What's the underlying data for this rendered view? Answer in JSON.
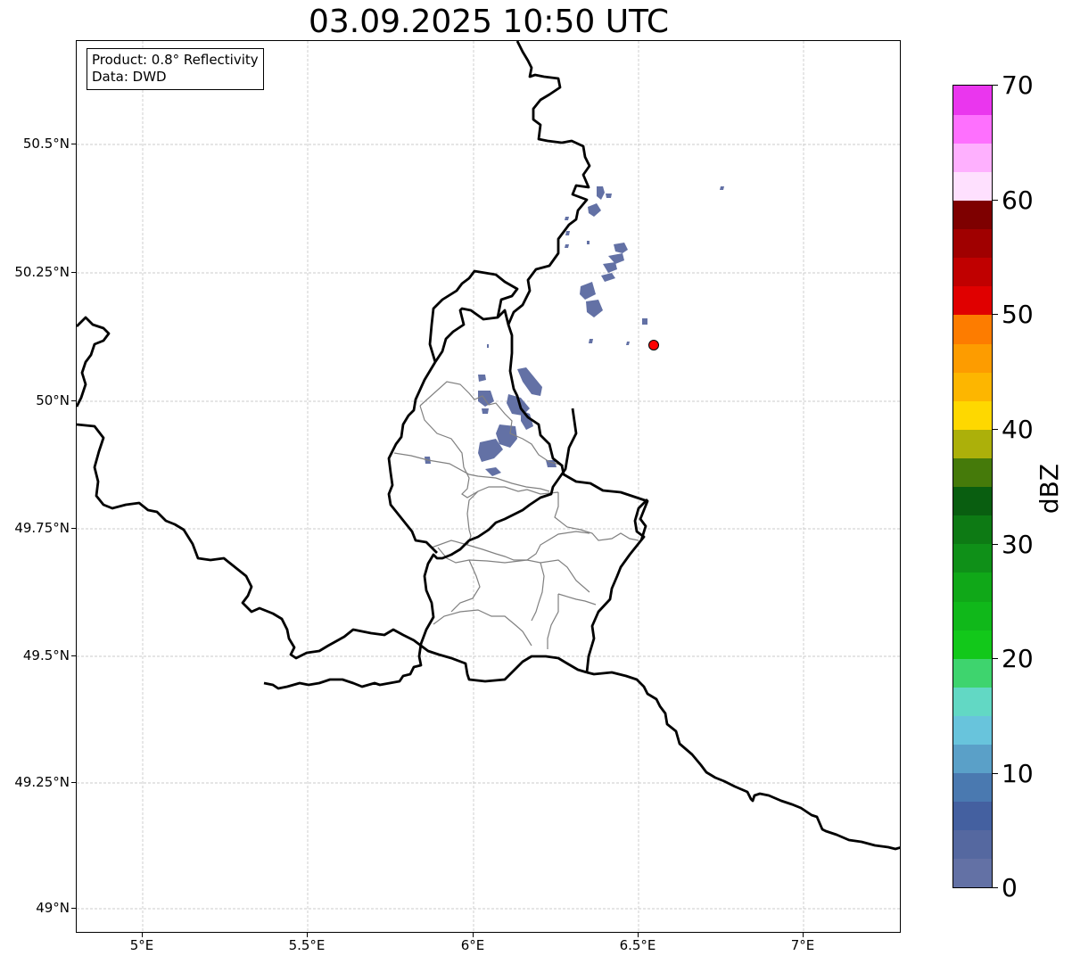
{
  "title": "03.09.2025 10:50 UTC",
  "info": {
    "product": "Product: 0.8° Reflectivity",
    "source": "Data: DWD"
  },
  "axes": {
    "lat_ticks": [
      "50.5°N",
      "50.25°N",
      "50°N",
      "49.75°N",
      "49.5°N",
      "49.25°N",
      "49°N"
    ],
    "lon_ticks": [
      "5°E",
      "5.5°E",
      "6°E",
      "6.5°E",
      "7°E"
    ],
    "grid": true
  },
  "colorbar": {
    "unit": "dBZ",
    "min": 0,
    "max": 70,
    "tick_labels": [
      "0",
      "10",
      "20",
      "30",
      "40",
      "50",
      "60",
      "70"
    ],
    "colors": [
      "#6371a5",
      "#5568a0",
      "#4460a0",
      "#4a79b0",
      "#5aa0c8",
      "#68c4dc",
      "#62d8c4",
      "#3ed46e",
      "#12c81a",
      "#10b81a",
      "#10a818",
      "#0f9018",
      "#0d7a14",
      "#095e10",
      "#457a0a",
      "#acb00a",
      "#fed800",
      "#fdb600",
      "#fd9c00",
      "#fd7c00",
      "#e00000",
      "#c00000",
      "#a00000",
      "#7e0000",
      "#fee0fe",
      "#feb0fe",
      "#fe70fe",
      "#ea36ee"
    ]
  },
  "map": {
    "precip_color": "#6371a5",
    "marker_color": "#ff0000",
    "border_color": "#000000",
    "admin_color": "#808080"
  }
}
